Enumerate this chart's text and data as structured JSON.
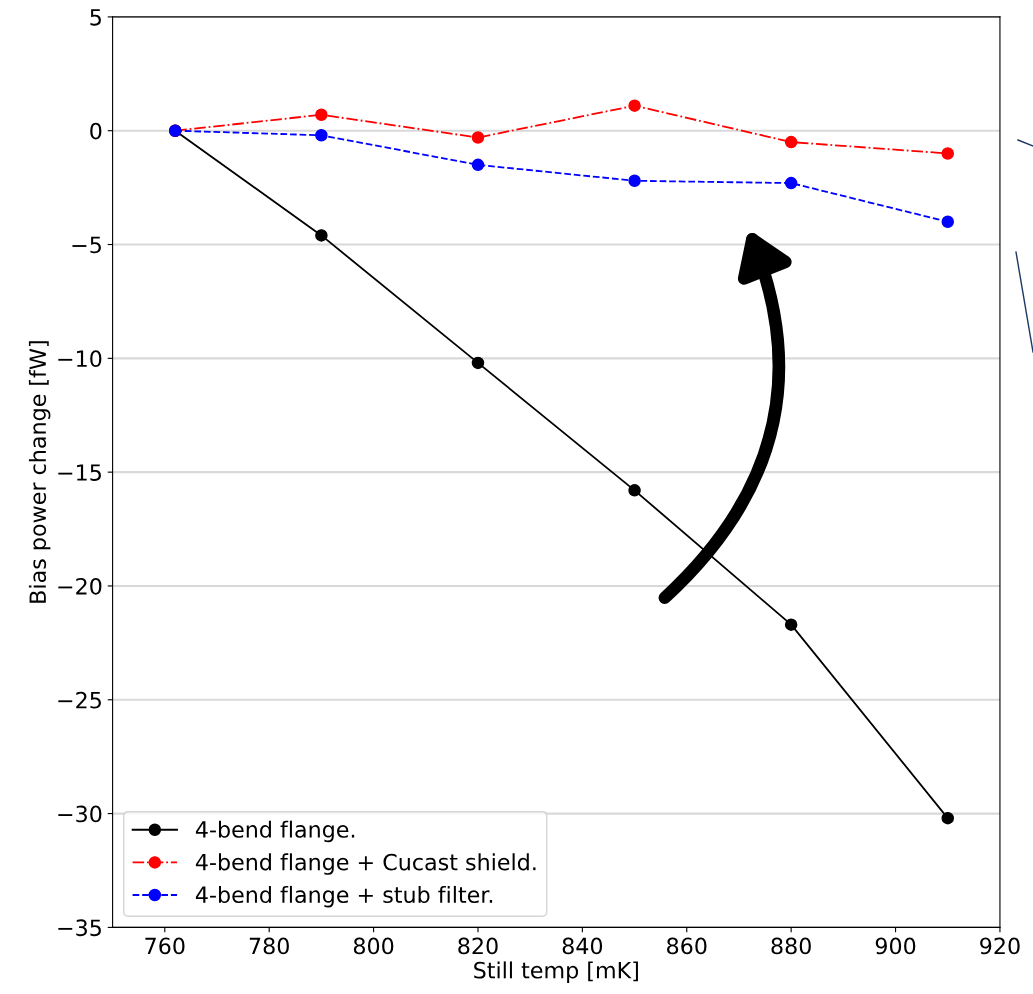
{
  "chart_data": {
    "type": "line",
    "xlabel": "Still temp [mK]",
    "ylabel": "Bias power change [fW]",
    "x": [
      762,
      790,
      820,
      850,
      880,
      910
    ],
    "series": [
      {
        "name": "4-bend flange.",
        "color": "#000000",
        "line_style": "solid",
        "values": [
          0,
          -4.6,
          -10.2,
          -15.8,
          -21.7,
          -30.2
        ]
      },
      {
        "name": "4-bend flange + Cucast shield.",
        "color": "#ff0000",
        "line_style": "dashdot",
        "values": [
          0,
          0.7,
          -0.3,
          1.1,
          -0.5,
          -1.0
        ]
      },
      {
        "name": "4-bend flange + stub filter.",
        "color": "#0000ff",
        "line_style": "dashed",
        "values": [
          0,
          -0.2,
          -1.5,
          -2.2,
          -2.3,
          -4.0
        ]
      }
    ],
    "xlim": [
      750,
      920
    ],
    "xticks": [
      760,
      780,
      800,
      820,
      840,
      860,
      880,
      900,
      920
    ],
    "ylim": [
      -35,
      5
    ],
    "yticks": [
      -35,
      -30,
      -25,
      -20,
      -15,
      -10,
      -5,
      0,
      5
    ],
    "grid": "y",
    "legend": "lower left",
    "marker": "circle"
  }
}
